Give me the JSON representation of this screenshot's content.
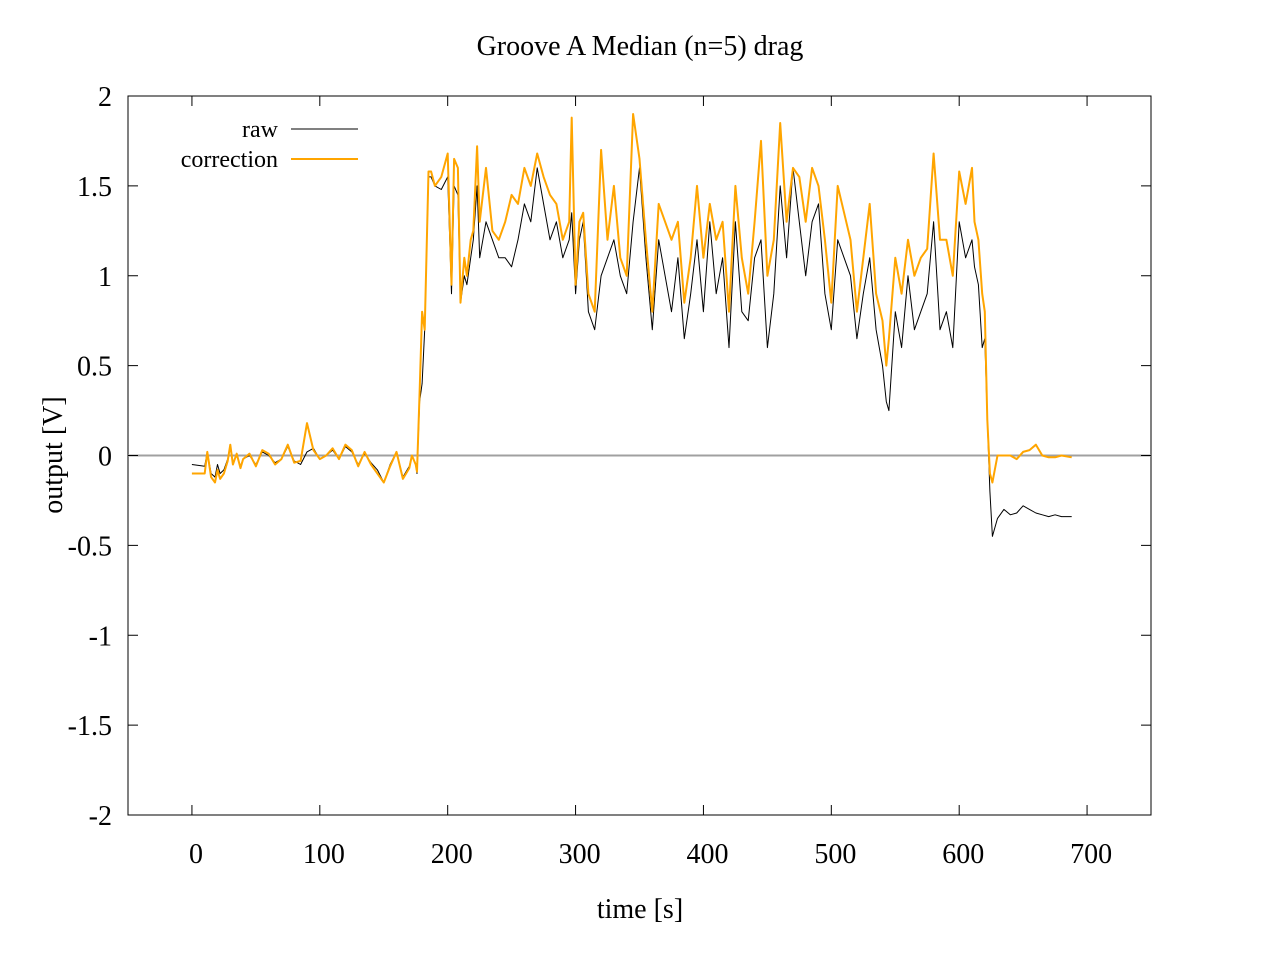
{
  "chart_data": {
    "type": "line",
    "title": "Groove A  Median (n=5) drag",
    "xlabel": "time [s]",
    "ylabel": "output [V]",
    "xlim": [
      -50,
      750
    ],
    "ylim": [
      -2,
      2
    ],
    "xticks": [
      0,
      100,
      200,
      300,
      400,
      500,
      600,
      700
    ],
    "yticks": [
      -2,
      -1.5,
      -1,
      -0.5,
      0,
      0.5,
      1,
      1.5,
      2
    ],
    "xtick_labels": [
      "0",
      "100",
      "200",
      "300",
      "400",
      "500",
      "600",
      "700"
    ],
    "ytick_labels": [
      "-2",
      "-1.5",
      "-1",
      "-0.5",
      "0",
      "0.5",
      "1",
      "1.5",
      "2"
    ],
    "grid": false,
    "zero_line": true,
    "legend_position": "top-left",
    "series": [
      {
        "name": "raw",
        "color": "#000000",
        "x": [
          0,
          10,
          12,
          15,
          18,
          20,
          22,
          25,
          28,
          30,
          32,
          35,
          38,
          40,
          45,
          50,
          55,
          60,
          65,
          70,
          75,
          80,
          85,
          90,
          95,
          100,
          105,
          110,
          115,
          120,
          125,
          130,
          135,
          140,
          145,
          150,
          155,
          160,
          165,
          170,
          172,
          175,
          176,
          178,
          180,
          182,
          185,
          187,
          190,
          195,
          200,
          203,
          205,
          208,
          210,
          213,
          215,
          218,
          220,
          223,
          225,
          230,
          235,
          240,
          245,
          250,
          255,
          260,
          265,
          270,
          275,
          280,
          285,
          290,
          295,
          297,
          300,
          303,
          306,
          310,
          315,
          320,
          325,
          330,
          335,
          340,
          345,
          350,
          355,
          360,
          365,
          370,
          375,
          380,
          385,
          390,
          395,
          400,
          405,
          410,
          415,
          420,
          425,
          430,
          435,
          440,
          445,
          450,
          455,
          460,
          465,
          470,
          475,
          480,
          485,
          490,
          495,
          500,
          505,
          510,
          515,
          520,
          525,
          530,
          535,
          540,
          543,
          545,
          550,
          555,
          560,
          565,
          570,
          575,
          580,
          585,
          590,
          595,
          600,
          605,
          610,
          612,
          615,
          618,
          620,
          622,
          624,
          626,
          630,
          635,
          640,
          645,
          650,
          655,
          660,
          665,
          670,
          675,
          680,
          688
        ],
        "y": [
          -0.05,
          -0.06,
          0.02,
          -0.1,
          -0.12,
          -0.05,
          -0.1,
          -0.08,
          -0.02,
          0.05,
          -0.04,
          0.0,
          -0.06,
          -0.02,
          0.0,
          -0.05,
          0.02,
          0.0,
          -0.04,
          -0.02,
          0.05,
          -0.03,
          -0.05,
          0.02,
          0.04,
          -0.02,
          0.0,
          0.03,
          -0.02,
          0.05,
          0.02,
          -0.05,
          0.01,
          -0.04,
          -0.08,
          -0.15,
          -0.05,
          0.02,
          -0.12,
          -0.06,
          0.0,
          -0.05,
          -0.1,
          0.3,
          0.4,
          0.7,
          1.55,
          1.55,
          1.5,
          1.48,
          1.55,
          0.9,
          1.5,
          1.45,
          0.85,
          1.0,
          0.95,
          1.1,
          1.2,
          1.5,
          1.1,
          1.3,
          1.2,
          1.1,
          1.1,
          1.05,
          1.2,
          1.4,
          1.3,
          1.6,
          1.4,
          1.2,
          1.3,
          1.1,
          1.2,
          1.35,
          0.9,
          1.2,
          1.3,
          0.8,
          0.7,
          1.0,
          1.1,
          1.2,
          1.0,
          0.9,
          1.3,
          1.6,
          1.1,
          0.7,
          1.2,
          1.0,
          0.8,
          1.1,
          0.65,
          0.9,
          1.2,
          0.8,
          1.3,
          0.9,
          1.1,
          0.6,
          1.3,
          0.8,
          0.75,
          1.1,
          1.2,
          0.6,
          0.9,
          1.5,
          1.1,
          1.6,
          1.3,
          1.0,
          1.3,
          1.4,
          0.9,
          0.7,
          1.2,
          1.1,
          1.0,
          0.65,
          0.9,
          1.1,
          0.7,
          0.5,
          0.3,
          0.25,
          0.8,
          0.6,
          1.0,
          0.7,
          0.8,
          0.9,
          1.3,
          0.7,
          0.8,
          0.6,
          1.3,
          1.1,
          1.2,
          1.05,
          0.95,
          0.6,
          0.65,
          0.2,
          -0.2,
          -0.45,
          -0.35,
          -0.3,
          -0.33,
          -0.32,
          -0.28,
          -0.3,
          -0.32,
          -0.33,
          -0.34,
          -0.33,
          -0.34,
          -0.34
        ]
      },
      {
        "name": "correction",
        "color": "#ffa500",
        "x": [
          0,
          10,
          12,
          15,
          18,
          20,
          22,
          25,
          28,
          30,
          32,
          35,
          38,
          40,
          45,
          50,
          55,
          60,
          65,
          70,
          75,
          80,
          85,
          90,
          95,
          100,
          105,
          110,
          115,
          120,
          125,
          130,
          135,
          140,
          145,
          150,
          155,
          160,
          165,
          170,
          172,
          175,
          176,
          178,
          180,
          182,
          185,
          187,
          190,
          195,
          200,
          203,
          205,
          208,
          210,
          213,
          215,
          218,
          220,
          223,
          225,
          230,
          235,
          240,
          245,
          250,
          255,
          260,
          265,
          270,
          275,
          280,
          285,
          290,
          295,
          297,
          300,
          303,
          306,
          310,
          315,
          320,
          325,
          330,
          335,
          340,
          345,
          350,
          355,
          360,
          365,
          370,
          375,
          380,
          385,
          390,
          395,
          400,
          405,
          410,
          415,
          420,
          425,
          430,
          435,
          440,
          445,
          450,
          455,
          460,
          465,
          470,
          475,
          480,
          485,
          490,
          495,
          500,
          505,
          510,
          515,
          520,
          525,
          530,
          535,
          540,
          543,
          545,
          550,
          555,
          560,
          565,
          570,
          575,
          580,
          585,
          590,
          595,
          600,
          605,
          610,
          612,
          615,
          618,
          620,
          622,
          624,
          626,
          630,
          635,
          640,
          645,
          650,
          655,
          660,
          665,
          670,
          675,
          680,
          688
        ],
        "y": [
          -0.1,
          -0.1,
          0.02,
          -0.12,
          -0.15,
          -0.08,
          -0.13,
          -0.1,
          -0.03,
          0.06,
          -0.05,
          0.01,
          -0.07,
          -0.02,
          0.01,
          -0.06,
          0.03,
          0.01,
          -0.05,
          -0.02,
          0.06,
          -0.04,
          -0.03,
          0.18,
          0.03,
          -0.02,
          0.0,
          0.04,
          -0.02,
          0.06,
          0.03,
          -0.06,
          0.02,
          -0.05,
          -0.1,
          -0.15,
          -0.06,
          0.02,
          -0.13,
          -0.07,
          0.0,
          -0.05,
          -0.09,
          0.35,
          0.8,
          0.7,
          1.58,
          1.58,
          1.5,
          1.55,
          1.68,
          0.95,
          1.65,
          1.6,
          0.85,
          1.1,
          1.0,
          1.2,
          1.25,
          1.72,
          1.3,
          1.6,
          1.25,
          1.2,
          1.3,
          1.45,
          1.4,
          1.6,
          1.5,
          1.68,
          1.55,
          1.45,
          1.4,
          1.2,
          1.3,
          1.88,
          0.95,
          1.3,
          1.35,
          0.9,
          0.8,
          1.7,
          1.2,
          1.5,
          1.1,
          1.0,
          1.9,
          1.65,
          1.2,
          0.8,
          1.4,
          1.3,
          1.2,
          1.3,
          0.85,
          1.1,
          1.5,
          1.1,
          1.4,
          1.2,
          1.3,
          0.8,
          1.5,
          1.1,
          0.9,
          1.3,
          1.75,
          1.0,
          1.2,
          1.85,
          1.3,
          1.6,
          1.55,
          1.3,
          1.6,
          1.5,
          1.2,
          0.85,
          1.5,
          1.35,
          1.2,
          0.8,
          1.1,
          1.4,
          0.9,
          0.75,
          0.5,
          0.65,
          1.1,
          0.9,
          1.2,
          1.0,
          1.1,
          1.15,
          1.68,
          1.2,
          1.2,
          1.0,
          1.58,
          1.4,
          1.6,
          1.3,
          1.2,
          0.9,
          0.8,
          0.2,
          -0.1,
          -0.15,
          0.0,
          0.0,
          0.0,
          -0.02,
          0.02,
          0.03,
          0.06,
          0.0,
          -0.01,
          -0.01,
          0.0,
          -0.01
        ]
      }
    ]
  }
}
